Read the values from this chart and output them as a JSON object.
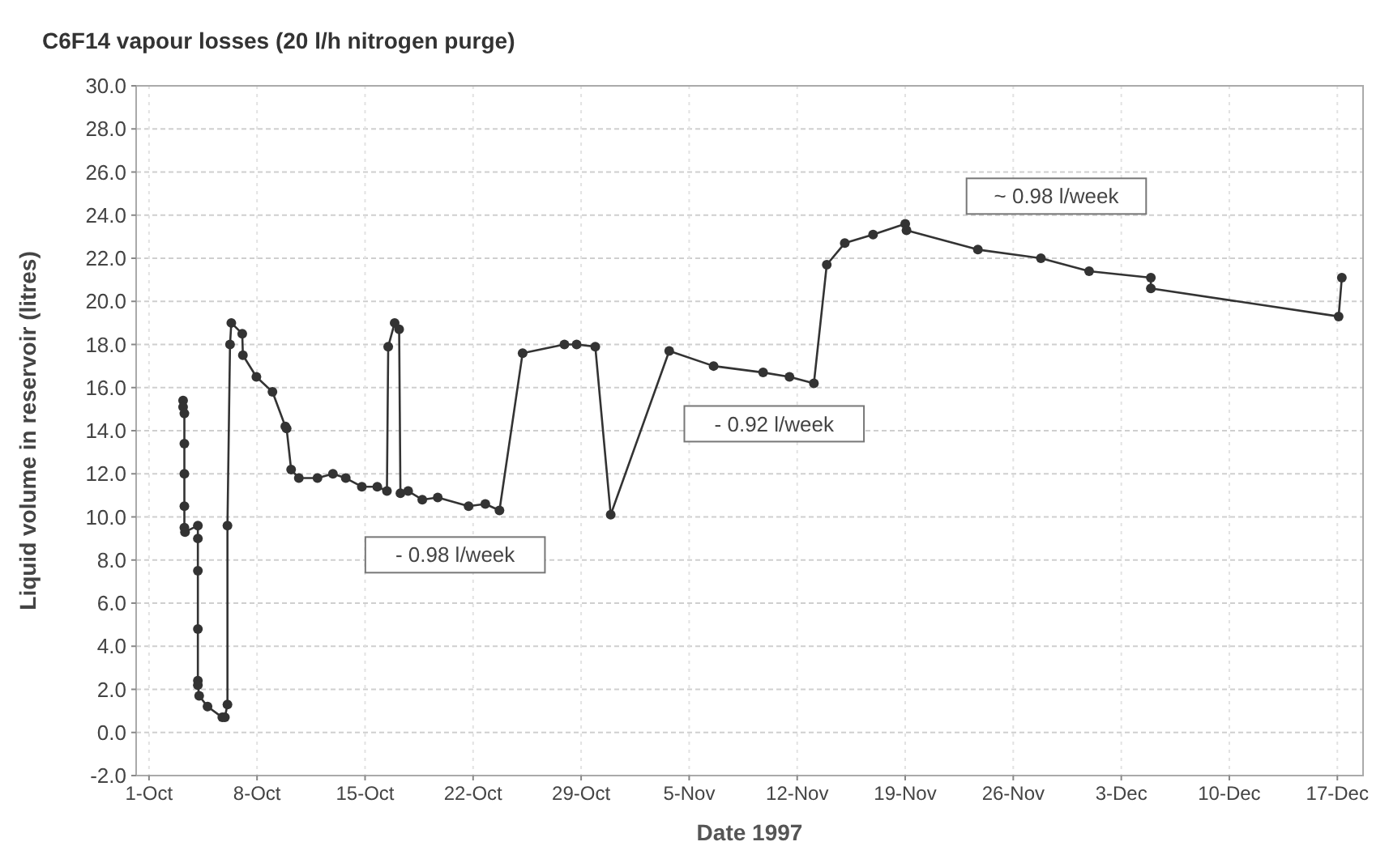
{
  "chart_data": {
    "type": "line",
    "title": "C6F14 vapour losses (20 l/h nitrogen purge)",
    "xlabel": "Date 1997",
    "ylabel": "Liquid volume in reservoir (litres)",
    "x": [
      "1997-10-03T05:00",
      "1997-10-03T05:00",
      "1997-10-03T07:00",
      "1997-10-03T07:00",
      "1997-10-03T07:00",
      "1997-10-03T07:00",
      "1997-10-03T07:00",
      "1997-10-03T08:00",
      "1997-10-04T04:00",
      "1997-10-04T04:00",
      "1997-10-04T04:00",
      "1997-10-04T04:00",
      "1997-10-04T04:00",
      "1997-10-04T04:00",
      "1997-10-04T06:00",
      "1997-10-04T19:00",
      "1997-10-05T18:00",
      "1997-10-05T22:00",
      "1997-10-06T02:00",
      "1997-10-06T02:00",
      "1997-10-06T06:00",
      "1997-10-06T08:00",
      "1997-10-07T01:00",
      "1997-10-07T02:00",
      "1997-10-07T23:00",
      "1997-10-09T00:00",
      "1997-10-09T20:00",
      "1997-10-09T22:00",
      "1997-10-10T05:00",
      "1997-10-10T17:00",
      "1997-10-11T22:00",
      "1997-10-12T22:00",
      "1997-10-13T18:00",
      "1997-10-14T19:00",
      "1997-10-15T19:00",
      "1997-10-16T10:00",
      "1997-10-16T12:00",
      "1997-10-16T22:00",
      "1997-10-17T05:00",
      "1997-10-17T07:00",
      "1997-10-17T19:00",
      "1997-10-18T17:00",
      "1997-10-19T17:00",
      "1997-10-21T17:00",
      "1997-10-22T19:00",
      "1997-10-23T17:00",
      "1997-10-25T05:00",
      "1997-10-27T22:00",
      "1997-10-28T17:00",
      "1997-10-29T22:00",
      "1997-10-30T22:00",
      "1997-11-03T17:00",
      "1997-11-06T14:00",
      "1997-11-09T19:00",
      "1997-11-11T12:00",
      "1997-11-13T02:00",
      "1997-11-13T22:00",
      "1997-11-15T02:00",
      "1997-11-16T22:00",
      "1997-11-19T00:00",
      "1997-11-19T02:00",
      "1997-11-23T17:00",
      "1997-11-27T19:00",
      "1997-11-30T22:00",
      "1997-12-04T22:00",
      "1997-12-04T22:00",
      "1997-12-17T02:00",
      "1997-12-17T07:00"
    ],
    "series": [
      {
        "color": "#333333",
        "values": [
          15.4,
          15.1,
          14.8,
          13.4,
          12.0,
          10.5,
          9.5,
          9.3,
          9.6,
          9.0,
          7.5,
          4.8,
          2.4,
          2.2,
          1.7,
          1.2,
          0.7,
          0.7,
          1.3,
          9.6,
          18.0,
          19.0,
          18.5,
          17.5,
          16.5,
          15.8,
          14.2,
          14.1,
          12.2,
          11.8,
          11.8,
          12.0,
          11.8,
          11.4,
          11.4,
          11.2,
          17.9,
          19.0,
          18.7,
          11.1,
          11.2,
          10.8,
          10.9,
          10.5,
          10.6,
          10.3,
          17.6,
          18.0,
          18.0,
          17.9,
          10.1,
          17.7,
          17.0,
          16.7,
          16.5,
          16.2,
          21.7,
          22.7,
          23.1,
          23.6,
          23.3,
          22.4,
          22.0,
          21.4,
          21.1,
          20.6,
          19.3,
          21.1
        ]
      }
    ],
    "xlim": [
      "1997-09-30T04:00",
      "1997-12-18T16:00"
    ],
    "xticks": [
      {
        "value": "1997-10-01",
        "label": "1-Oct"
      },
      {
        "value": "1997-10-08",
        "label": "8-Oct"
      },
      {
        "value": "1997-10-15",
        "label": "15-Oct"
      },
      {
        "value": "1997-10-22",
        "label": "22-Oct"
      },
      {
        "value": "1997-10-29",
        "label": "29-Oct"
      },
      {
        "value": "1997-11-05",
        "label": "5-Nov"
      },
      {
        "value": "1997-11-12",
        "label": "12-Nov"
      },
      {
        "value": "1997-11-19",
        "label": "19-Nov"
      },
      {
        "value": "1997-11-26",
        "label": "26-Nov"
      },
      {
        "value": "1997-12-03",
        "label": "3-Dec"
      },
      {
        "value": "1997-12-10",
        "label": "10-Dec"
      },
      {
        "value": "1997-12-17",
        "label": "17-Dec"
      }
    ],
    "ylim": [
      -2,
      30
    ],
    "yticks": [
      {
        "value": -2,
        "label": "-2.0"
      },
      {
        "value": 0,
        "label": "0.0"
      },
      {
        "value": 2,
        "label": "2.0"
      },
      {
        "value": 4,
        "label": "4.0"
      },
      {
        "value": 6,
        "label": "6.0"
      },
      {
        "value": 8,
        "label": "8.0"
      },
      {
        "value": 10,
        "label": "10.0"
      },
      {
        "value": 12,
        "label": "12.0"
      },
      {
        "value": 14,
        "label": "14.0"
      },
      {
        "value": 16,
        "label": "16.0"
      },
      {
        "value": 18,
        "label": "18.0"
      },
      {
        "value": 20,
        "label": "20.0"
      },
      {
        "value": 22,
        "label": "22.0"
      },
      {
        "value": 24,
        "label": "24.0"
      },
      {
        "value": 26,
        "label": "26.0"
      },
      {
        "value": 28,
        "label": "28.0"
      },
      {
        "value": 30,
        "label": "30.0"
      }
    ],
    "annotations": [
      "- 0.98 l/week",
      "- 0.92 l/week",
      "~ 0.98 l/week"
    ],
    "grid": true,
    "marker": "circle",
    "line_style": "solid"
  }
}
